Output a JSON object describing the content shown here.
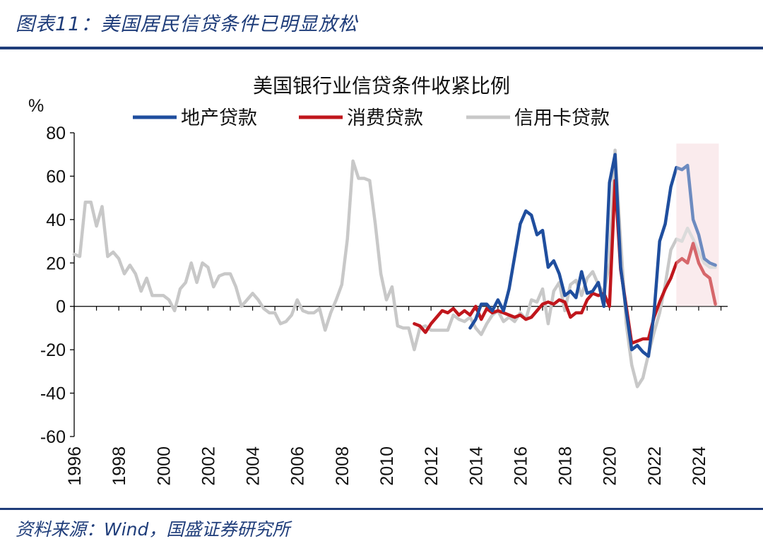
{
  "header": {
    "figure_title": "图表11：美国居民信贷条件已明显放松"
  },
  "footer": {
    "source": "资料来源：Wind，国盛证券研究所"
  },
  "chart_data": {
    "type": "line",
    "title": "美国银行业信贷条件收紧比例",
    "ylabel": "%",
    "xlabel": "",
    "xlim": [
      1996,
      2025.3
    ],
    "ylim": [
      -60,
      80
    ],
    "y_ticks": [
      80,
      60,
      40,
      20,
      0,
      -20,
      -40,
      -60
    ],
    "x_ticks": [
      "1996",
      "1998",
      "2000",
      "2002",
      "2004",
      "2006",
      "2008",
      "2010",
      "2012",
      "2014",
      "2016",
      "2018",
      "2020",
      "2022",
      "2024"
    ],
    "legend_position": "top",
    "highlight": {
      "x_range": [
        2023.0,
        2024.9
      ],
      "y_range": [
        0,
        75
      ],
      "color": "#F7E1E4"
    },
    "series": [
      {
        "name": "地产贷款",
        "color": "#1F4E9E",
        "x": [
          2013.75,
          2014.0,
          2014.25,
          2014.5,
          2014.75,
          2015.0,
          2015.25,
          2015.5,
          2015.75,
          2016.0,
          2016.25,
          2016.5,
          2016.75,
          2017.0,
          2017.25,
          2017.5,
          2017.75,
          2018.0,
          2018.25,
          2018.5,
          2018.75,
          2019.0,
          2019.25,
          2019.5,
          2019.75,
          2020.0,
          2020.25,
          2020.5,
          2020.75,
          2021.0,
          2021.25,
          2021.5,
          2021.75,
          2022.0,
          2022.25,
          2022.5,
          2022.75,
          2023.0,
          2023.25,
          2023.5,
          2023.75,
          2024.0,
          2024.25,
          2024.5,
          2024.75
        ],
        "values": [
          -10,
          -6,
          1,
          1,
          -2,
          3,
          -2,
          8,
          23,
          38,
          44,
          42,
          33,
          35,
          18,
          21,
          15,
          5,
          7,
          4,
          16,
          6,
          7,
          11,
          0,
          57,
          70,
          18,
          -2,
          -20,
          -18,
          -21,
          -23,
          -3,
          30,
          38,
          55,
          64,
          63,
          65,
          40,
          33,
          22,
          20,
          19
        ]
      },
      {
        "name": "消费贷款",
        "color": "#C0161C",
        "x": [
          2011.25,
          2011.5,
          2011.75,
          2012.0,
          2012.25,
          2012.5,
          2012.75,
          2013.0,
          2013.25,
          2013.5,
          2013.75,
          2014.0,
          2014.25,
          2014.5,
          2014.75,
          2015.0,
          2015.25,
          2015.5,
          2015.75,
          2016.0,
          2016.25,
          2016.5,
          2016.75,
          2017.0,
          2017.25,
          2017.5,
          2017.75,
          2018.0,
          2018.25,
          2018.5,
          2018.75,
          2019.0,
          2019.25,
          2019.5,
          2019.75,
          2020.0,
          2020.25,
          2020.5,
          2020.75,
          2021.0,
          2021.25,
          2021.5,
          2021.75,
          2022.0,
          2022.25,
          2022.5,
          2022.75,
          2023.0,
          2023.25,
          2023.5,
          2023.75,
          2024.0,
          2024.25,
          2024.5,
          2024.75
        ],
        "values": [
          -8,
          -9,
          -12,
          -8,
          -5,
          -2,
          -3,
          -1,
          -4,
          -2,
          -4,
          0,
          -6,
          -1,
          -3,
          -2,
          -3,
          -4,
          -5,
          -4,
          -6,
          -5,
          -2,
          1,
          2,
          1,
          3,
          2,
          -5,
          -3,
          -3,
          3,
          6,
          5,
          6,
          0,
          58,
          17,
          0,
          -17,
          -16,
          -15,
          -15,
          -5,
          2,
          8,
          13,
          20,
          22,
          20,
          29,
          20,
          15,
          13,
          1
        ]
      },
      {
        "name": "信用卡贷款",
        "color": "#C8C8C8",
        "x": [
          1996.0,
          1996.25,
          1996.5,
          1996.75,
          1997.0,
          1997.25,
          1997.5,
          1997.75,
          1998.0,
          1998.25,
          1998.5,
          1998.75,
          1999.0,
          1999.25,
          1999.5,
          1999.75,
          2000.0,
          2000.25,
          2000.5,
          2000.75,
          2001.0,
          2001.25,
          2001.5,
          2001.75,
          2002.0,
          2002.25,
          2002.5,
          2002.75,
          2003.0,
          2003.25,
          2003.5,
          2003.75,
          2004.0,
          2004.25,
          2004.5,
          2004.75,
          2005.0,
          2005.25,
          2005.5,
          2005.75,
          2006.0,
          2006.25,
          2006.5,
          2006.75,
          2007.0,
          2007.25,
          2007.5,
          2007.75,
          2008.0,
          2008.25,
          2008.5,
          2008.75,
          2009.0,
          2009.25,
          2009.5,
          2009.75,
          2010.0,
          2010.25,
          2010.5,
          2010.75,
          2011.0,
          2011.25,
          2011.5,
          2011.75,
          2012.0,
          2012.25,
          2012.5,
          2012.75,
          2013.0,
          2013.25,
          2013.5,
          2013.75,
          2014.0,
          2014.25,
          2014.5,
          2014.75,
          2015.0,
          2015.25,
          2015.5,
          2015.75,
          2016.0,
          2016.25,
          2016.5,
          2016.75,
          2017.0,
          2017.25,
          2017.5,
          2017.75,
          2018.0,
          2018.25,
          2018.5,
          2018.75,
          2019.0,
          2019.25,
          2019.5,
          2019.75,
          2020.0,
          2020.25,
          2020.5,
          2020.75,
          2021.0,
          2021.25,
          2021.5,
          2021.75,
          2022.0,
          2022.25,
          2022.5,
          2022.75,
          2023.0,
          2023.25,
          2023.5,
          2023.75,
          2024.0,
          2024.25,
          2024.5,
          2024.75
        ],
        "values": [
          24,
          23,
          48,
          48,
          37,
          46,
          23,
          25,
          22,
          15,
          19,
          15,
          7,
          13,
          5,
          5,
          5,
          3,
          -2,
          8,
          11,
          20,
          11,
          20,
          18,
          9,
          14,
          15,
          15,
          9,
          0,
          3,
          6,
          3,
          -1,
          -3,
          -3,
          -8,
          -7,
          -4,
          3,
          -2,
          -3,
          -3,
          -1,
          -11,
          -3,
          3,
          10,
          31,
          67,
          59,
          59,
          58,
          38,
          15,
          3,
          9,
          -9,
          -10,
          -10,
          -20,
          -10,
          -9,
          -11,
          -11,
          -11,
          -11,
          -4,
          -6,
          -7,
          -5,
          -10,
          -13,
          -8,
          -4,
          -2,
          -7,
          -5,
          -7,
          -3,
          -6,
          3,
          2,
          8,
          -8,
          7,
          11,
          -2,
          10,
          12,
          5,
          13,
          16,
          10,
          6,
          20,
          72,
          30,
          -8,
          -27,
          -37,
          -33,
          -22,
          -12,
          -3,
          10,
          26,
          31,
          30,
          36,
          31,
          25,
          20,
          18,
          18
        ]
      }
    ]
  }
}
